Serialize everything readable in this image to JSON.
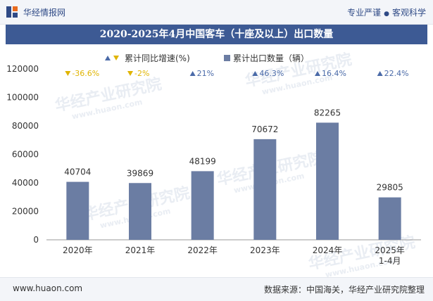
{
  "header": {
    "brand": "华经情报网",
    "tagline_left": "专业严谨",
    "tagline_right": "客观科学",
    "title": "2020-2025年4月中国客车（十座及以上）出口数量"
  },
  "footer": {
    "website": "www.huaon.com",
    "source": "数据来源：中国海关，华经产业研究院整理"
  },
  "watermark": {
    "text": "华经产业研究院",
    "url": "www.huaon.com"
  },
  "colors": {
    "bar": "#6b7da3",
    "up_marker": "#4a6aa8",
    "down_marker": "#e0b400",
    "title_bg": "#3d5a94"
  },
  "chart_data": {
    "type": "bar",
    "categories": [
      "2020年",
      "2021年",
      "2022年",
      "2023年",
      "2024年",
      "2025年 1-4月"
    ],
    "series": [
      {
        "name": "累计出口数量（辆）",
        "values": [
          40704,
          39869,
          48199,
          70672,
          82265,
          29805
        ],
        "data_labels": [
          "40704",
          "39869",
          "48199",
          "70672",
          "82265",
          "29805"
        ]
      },
      {
        "name": "累计同比增速(%)",
        "values": [
          -36.6,
          -2,
          21,
          46.3,
          16.4,
          22.4
        ],
        "labels": [
          "-36.6%",
          "-2%",
          "21%",
          "46.3%",
          "16.4%",
          "22.4%"
        ],
        "direction": [
          "down",
          "down",
          "up",
          "up",
          "up",
          "up"
        ]
      }
    ],
    "ylim": [
      0,
      120000
    ],
    "yticks": [
      "0",
      "20000",
      "40000",
      "60000",
      "80000",
      "100000",
      "120000"
    ],
    "legend": "top-center",
    "grid": false
  }
}
